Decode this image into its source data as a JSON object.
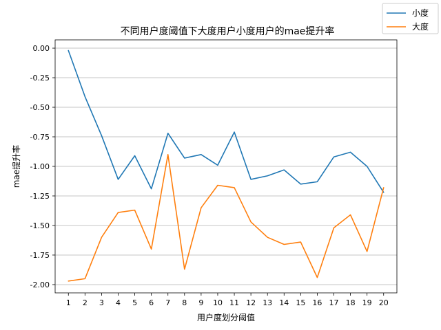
{
  "chart_data": {
    "type": "line",
    "title": "不同用户度阈值下大度用户小度用户的mae提升率",
    "xlabel": "用户度划分阈值",
    "ylabel": "mae提升率",
    "x": [
      1,
      2,
      3,
      4,
      5,
      6,
      7,
      8,
      9,
      10,
      11,
      12,
      13,
      14,
      15,
      16,
      17,
      18,
      19,
      20
    ],
    "xlim": [
      0.2,
      20.8
    ],
    "ylim": [
      -2.07,
      0.07
    ],
    "yticks": [
      0.0,
      -0.25,
      -0.5,
      -0.75,
      -1.0,
      -1.25,
      -1.5,
      -1.75,
      -2.0
    ],
    "ytick_labels": [
      "0.00",
      "-0.25",
      "-0.50",
      "-0.75",
      "-1.00",
      "-1.25",
      "-1.50",
      "-1.75",
      "-2.00"
    ],
    "grid": "horizontal",
    "legend_position": "top-right",
    "series": [
      {
        "name": "小度",
        "color": "#1f77b4",
        "values": [
          -0.02,
          -0.41,
          -0.74,
          -1.11,
          -0.91,
          -1.19,
          -0.72,
          -0.93,
          -0.9,
          -0.99,
          -0.71,
          -1.11,
          -1.08,
          -1.03,
          -1.15,
          -1.13,
          -0.92,
          -0.88,
          -1.0,
          -1.22
        ]
      },
      {
        "name": "大度",
        "color": "#ff7f0e",
        "values": [
          -1.97,
          -1.95,
          -1.6,
          -1.39,
          -1.37,
          -1.7,
          -0.9,
          -1.87,
          -1.35,
          -1.16,
          -1.18,
          -1.47,
          -1.6,
          -1.66,
          -1.64,
          -1.94,
          -1.52,
          -1.41,
          -1.72,
          -1.18
        ]
      }
    ]
  }
}
